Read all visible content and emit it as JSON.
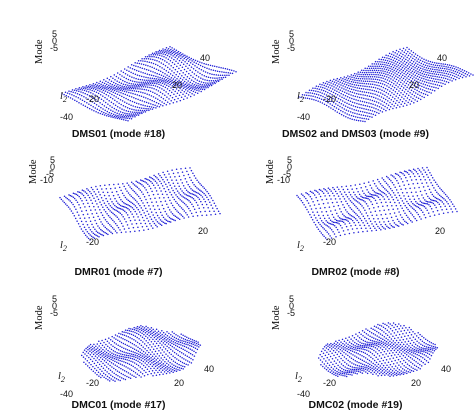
{
  "figure": {
    "panels": [
      {
        "caption": "DMS01 (mode #18)",
        "zlabel": "Mode",
        "xlabel": "l",
        "xlabel_sub": "2",
        "x_ticks": [
          "-40",
          "-20"
        ],
        "y_ticks": [
          "20",
          "40"
        ],
        "z_ticks": [
          "5",
          "0",
          "-5"
        ]
      },
      {
        "caption": "DMS02 and DMS03 (mode #9)",
        "zlabel": "Mode",
        "xlabel": "l",
        "xlabel_sub": "2",
        "x_ticks": [
          "-40",
          "-20"
        ],
        "y_ticks": [
          "20",
          "40"
        ],
        "z_ticks": [
          "5",
          "0",
          "-5"
        ]
      },
      {
        "caption": "DMR01 (mode #7)",
        "zlabel": "Mode",
        "xlabel": "l",
        "xlabel_sub": "2",
        "x_ticks": [
          "-20"
        ],
        "y_ticks": [
          "20"
        ],
        "z_ticks": [
          "5",
          "0",
          "-5",
          "-10"
        ]
      },
      {
        "caption": "DMR02 (mode #8)",
        "zlabel": "Mode",
        "xlabel": "l",
        "xlabel_sub": "2",
        "x_ticks": [
          "-20"
        ],
        "y_ticks": [
          "20"
        ],
        "z_ticks": [
          "5",
          "0",
          "-5",
          "-10"
        ]
      },
      {
        "caption": "DMC01 (mode #17)",
        "zlabel": "Mode",
        "xlabel": "l",
        "xlabel_sub": "2",
        "x_ticks": [
          "-40",
          "-20"
        ],
        "y_ticks": [
          "20",
          "40"
        ],
        "z_ticks": [
          "5",
          "0",
          "-5"
        ]
      },
      {
        "caption": "DMC02 (mode #19)",
        "zlabel": "Mode",
        "xlabel": "l",
        "xlabel_sub": "2",
        "x_ticks": [
          "-40",
          "-20"
        ],
        "y_ticks": [
          "20",
          "40"
        ],
        "z_ticks": [
          "5",
          "0",
          "-5"
        ]
      }
    ]
  },
  "chart_data": [
    {
      "type": "scatter",
      "title": "DMS01 (mode #18)",
      "shape": "square",
      "xlabel": "l2",
      "ylabel": "",
      "zlabel": "Mode",
      "xlim": [
        -40,
        40
      ],
      "ylim": [
        -40,
        40
      ],
      "zlim": [
        -5,
        5
      ],
      "x_ticks": [
        -40,
        -20
      ],
      "y_ticks": [
        20,
        40
      ],
      "z_ticks": [
        5,
        0,
        -5
      ],
      "marker_color": "#1f1fd6",
      "grid_points": [
        32,
        32
      ],
      "grid": false,
      "legend": false
    },
    {
      "type": "scatter",
      "title": "DMS02 and DMS03 (mode #9)",
      "shape": "square",
      "xlabel": "l2",
      "ylabel": "",
      "zlabel": "Mode",
      "xlim": [
        -40,
        40
      ],
      "ylim": [
        -40,
        40
      ],
      "zlim": [
        -5,
        5
      ],
      "x_ticks": [
        -40,
        -20
      ],
      "y_ticks": [
        20,
        40
      ],
      "z_ticks": [
        5,
        0,
        -5
      ],
      "marker_color": "#1f1fd6",
      "grid_points": [
        32,
        32
      ],
      "grid": false,
      "legend": false
    },
    {
      "type": "scatter",
      "title": "DMR01 (mode #7)",
      "shape": "rectangle",
      "xlabel": "l2",
      "ylabel": "",
      "zlabel": "Mode",
      "xlim": [
        -30,
        30
      ],
      "ylim": [
        -20,
        20
      ],
      "zlim": [
        -10,
        5
      ],
      "x_ticks": [
        -20
      ],
      "y_ticks": [
        20
      ],
      "z_ticks": [
        5,
        0,
        -5,
        -10
      ],
      "marker_color": "#1f1fd6",
      "grid_points": [
        30,
        22
      ],
      "grid": false,
      "legend": false
    },
    {
      "type": "scatter",
      "title": "DMR02 (mode #8)",
      "shape": "rectangle",
      "xlabel": "l2",
      "ylabel": "",
      "zlabel": "Mode",
      "xlim": [
        -30,
        30
      ],
      "ylim": [
        -20,
        20
      ],
      "zlim": [
        -10,
        5
      ],
      "x_ticks": [
        -20
      ],
      "y_ticks": [
        20
      ],
      "z_ticks": [
        5,
        0,
        -5,
        -10
      ],
      "marker_color": "#1f1fd6",
      "grid_points": [
        30,
        22
      ],
      "grid": false,
      "legend": false
    },
    {
      "type": "scatter",
      "title": "DMC01 (mode #17)",
      "shape": "circle",
      "xlabel": "l2",
      "ylabel": "",
      "zlabel": "Mode",
      "xlim": [
        -40,
        40
      ],
      "ylim": [
        -40,
        40
      ],
      "zlim": [
        -5,
        5
      ],
      "x_ticks": [
        -40,
        -20
      ],
      "y_ticks": [
        20,
        40
      ],
      "z_ticks": [
        5,
        0,
        -5
      ],
      "marker_color": "#1f1fd6",
      "grid_points": [
        32,
        32
      ],
      "grid": false,
      "legend": false
    },
    {
      "type": "scatter",
      "title": "DMC02 (mode #19)",
      "shape": "circle",
      "xlabel": "l2",
      "ylabel": "",
      "zlabel": "Mode",
      "xlim": [
        -40,
        40
      ],
      "ylim": [
        -40,
        40
      ],
      "zlim": [
        -5,
        5
      ],
      "x_ticks": [
        -40,
        -20
      ],
      "y_ticks": [
        20,
        40
      ],
      "z_ticks": [
        5,
        0,
        -5
      ],
      "marker_color": "#1f1fd6",
      "grid_points": [
        32,
        32
      ],
      "grid": false,
      "legend": false
    }
  ]
}
